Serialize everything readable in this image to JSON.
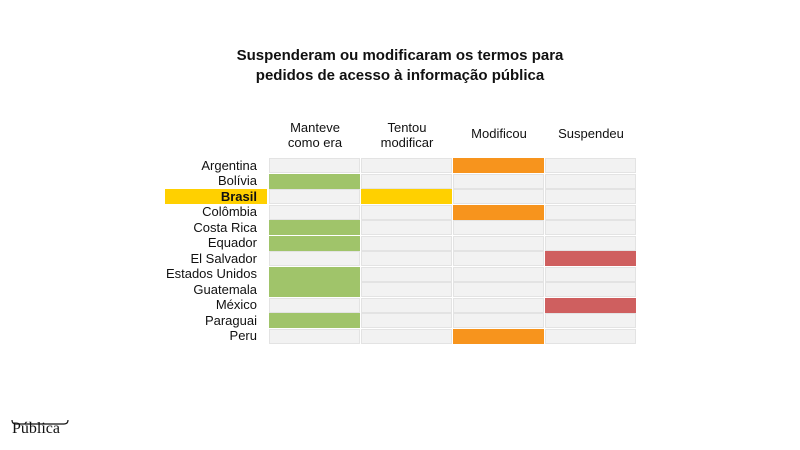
{
  "chart_data": {
    "type": "table",
    "title_lines": [
      "Suspenderam ou modificaram os termos para",
      "pedidos de acesso à informação pública"
    ],
    "columns": [
      {
        "label_lines": [
          "Manteve",
          "como era"
        ],
        "color": "#A0C46A"
      },
      {
        "label_lines": [
          "Tentou",
          "modificar"
        ],
        "color": "#FFD000"
      },
      {
        "label_lines": [
          "Modificou"
        ],
        "color": "#F7941D"
      },
      {
        "label_lines": [
          "Suspendeu"
        ],
        "color": "#CF5F5F"
      }
    ],
    "highlight_row": "Brasil",
    "highlight_color": "#FFD000",
    "rows": [
      {
        "country": "Argentina",
        "status": "Modificou"
      },
      {
        "country": "Bolívia",
        "status": "Manteve como era"
      },
      {
        "country": "Brasil",
        "status": "Tentou modificar"
      },
      {
        "country": "Colômbia",
        "status": "Modificou"
      },
      {
        "country": "Costa Rica",
        "status": "Manteve como era"
      },
      {
        "country": "Equador",
        "status": "Manteve como era"
      },
      {
        "country": "El Salvador",
        "status": "Suspendeu"
      },
      {
        "country": "Estados Unidos",
        "status": "Manteve como era"
      },
      {
        "country": "Guatemala",
        "status": "Manteve como era"
      },
      {
        "country": "México",
        "status": "Suspendeu"
      },
      {
        "country": "Paraguai",
        "status": "Manteve como era"
      },
      {
        "country": "Peru",
        "status": "Modificou"
      }
    ],
    "status_to_column": {
      "Manteve como era": 0,
      "Tentou modificar": 1,
      "Modificou": 2,
      "Suspendeu": 3
    }
  },
  "branding": {
    "logo_text": "Pública",
    "logo_icon": "mustache-arc"
  }
}
